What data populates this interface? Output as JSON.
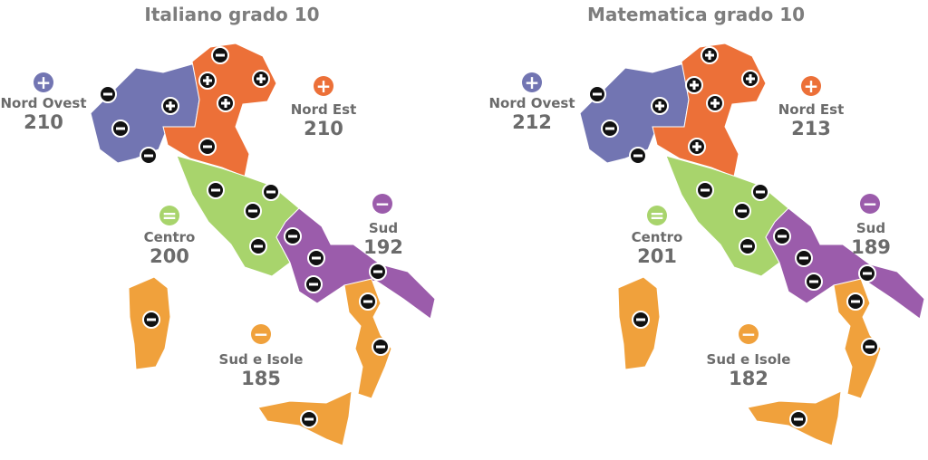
{
  "colors": {
    "nord_ovest": "#7275b2",
    "nord_est": "#ec7038",
    "centro": "#a8d46c",
    "sud": "#9b5cab",
    "sud_isole": "#f0a13c"
  },
  "panels": [
    {
      "title": "Italiano grado 10",
      "areas": [
        {
          "key": "nord_ovest",
          "name": "Nord Ovest",
          "score": "210",
          "sign": "plus"
        },
        {
          "key": "nord_est",
          "name": "Nord Est",
          "score": "210",
          "sign": "plus"
        },
        {
          "key": "centro",
          "name": "Centro",
          "score": "200",
          "sign": "equal"
        },
        {
          "key": "sud",
          "name": "Sud",
          "score": "192",
          "sign": "minus"
        },
        {
          "key": "sud_isole",
          "name": "Sud e Isole",
          "score": "185",
          "sign": "minus"
        }
      ]
    },
    {
      "title": "Matematica grado 10",
      "areas": [
        {
          "key": "nord_ovest",
          "name": "Nord Ovest",
          "score": "212",
          "sign": "plus"
        },
        {
          "key": "nord_est",
          "name": "Nord Est",
          "score": "213",
          "sign": "plus"
        },
        {
          "key": "centro",
          "name": "Centro",
          "score": "201",
          "sign": "equal"
        },
        {
          "key": "sud",
          "name": "Sud",
          "score": "189",
          "sign": "minus"
        },
        {
          "key": "sud_isole",
          "name": "Sud e Isole",
          "score": "182",
          "sign": "minus"
        }
      ]
    }
  ]
}
